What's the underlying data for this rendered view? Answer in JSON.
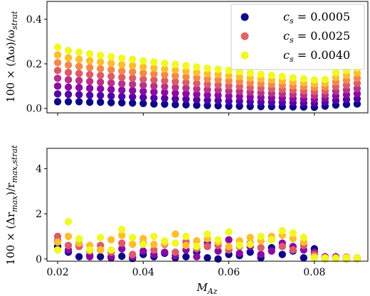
{
  "chart_data": [
    {
      "type": "scatter",
      "panel": "top",
      "ylabel": "100 × (Δω)/ω_strat",
      "ylabel_parts": {
        "prefix": "100 × (Δω)/ω",
        "sub": "strat"
      },
      "xlim": [
        0.0175,
        0.0925
      ],
      "ylim": [
        -0.02,
        0.48
      ],
      "yticks": [
        0.0,
        0.2,
        0.4
      ],
      "yticklabels": [
        "0.0",
        "0.2",
        "0.4"
      ],
      "grid": false,
      "legend": {
        "placement": "top-right",
        "entries": [
          {
            "prefix": "c",
            "sub": "s",
            "value": " = 0.0005",
            "color": "#0d0887"
          },
          {
            "prefix": "c",
            "sub": "s",
            "value": " = 0.0025",
            "color": "#e16462"
          },
          {
            "prefix": "c",
            "sub": "s",
            "value": " = 0.0040",
            "color": "#f0f921"
          }
        ]
      },
      "colormap": [
        "#0d0887",
        "#5302a3",
        "#8b0aa5",
        "#b83289",
        "#db5c68",
        "#f48849",
        "#febd2a",
        "#f0f921"
      ],
      "x": [
        0.02,
        0.0225,
        0.025,
        0.0275,
        0.03,
        0.0325,
        0.035,
        0.0375,
        0.04,
        0.0425,
        0.045,
        0.0475,
        0.05,
        0.0525,
        0.055,
        0.0575,
        0.06,
        0.0625,
        0.065,
        0.0675,
        0.07,
        0.0725,
        0.075,
        0.0775,
        0.08,
        0.0825,
        0.085,
        0.0875,
        0.09
      ],
      "min_cs_values": [
        0.03,
        0.03,
        0.03,
        0.028,
        0.028,
        0.026,
        0.025,
        0.024,
        0.022,
        0.02,
        0.019,
        0.017,
        0.016,
        0.014,
        0.013,
        0.012,
        0.01,
        0.01,
        0.009,
        0.008,
        0.008,
        0.008,
        0.007,
        0.006,
        0.005,
        0.01,
        0.015,
        0.018,
        0.02
      ],
      "max_cs_values": [
        0.275,
        0.26,
        0.252,
        0.245,
        0.238,
        0.232,
        0.225,
        0.22,
        0.213,
        0.208,
        0.203,
        0.198,
        0.192,
        0.186,
        0.18,
        0.176,
        0.17,
        0.165,
        0.158,
        0.153,
        0.148,
        0.143,
        0.138,
        0.133,
        0.128,
        0.13,
        0.16,
        0.17,
        0.182
      ],
      "n_levels": 8
    },
    {
      "type": "scatter",
      "panel": "bottom",
      "xlabel": "M_Az",
      "xlabel_parts": {
        "prefix": "M",
        "sub": "Az"
      },
      "ylabel": "100 × (Δr_max)/r_max,strat",
      "ylabel_parts": {
        "p1": "100 × (Δr",
        "sub1": "max",
        "p2": ")/r",
        "sub2": "max,strat"
      },
      "xlim": [
        0.0175,
        0.0925
      ],
      "ylim": [
        -0.1,
        4.9
      ],
      "yticks": [
        0,
        2,
        4
      ],
      "yticklabels": [
        "0",
        "2",
        "4"
      ],
      "xticks": [
        0.02,
        0.04,
        0.06,
        0.08
      ],
      "xticklabels": [
        "0.02",
        "0.04",
        "0.06",
        "0.08"
      ],
      "grid": false,
      "x": [
        0.02,
        0.0225,
        0.025,
        0.0275,
        0.03,
        0.0325,
        0.035,
        0.0375,
        0.04,
        0.0425,
        0.045,
        0.0475,
        0.05,
        0.0525,
        0.055,
        0.0575,
        0.06,
        0.0625,
        0.065,
        0.0675,
        0.07,
        0.0725,
        0.075,
        0.0775,
        0.08,
        0.0825,
        0.085,
        0.0875,
        0.09
      ],
      "series_by_level": [
        [
          0.55,
          0.3,
          0.1,
          0.15,
          0.1,
          0.05,
          0.12,
          0.02,
          0.2,
          0.1,
          0.25,
          0.05,
          0.1,
          0.3,
          0.05,
          0.0,
          0.2,
          0.15,
          0.3,
          0.05,
          0.5,
          0.2,
          0.35,
          0.05,
          0.45,
          0.05,
          0.05,
          0.02,
          0.02
        ],
        [
          0.8,
          0.4,
          0.6,
          0.1,
          0.4,
          0.1,
          0.45,
          0.1,
          0.35,
          0.2,
          0.3,
          0.15,
          0.4,
          0.1,
          0.7,
          0.35,
          0.85,
          0.25,
          0.55,
          0.2,
          0.35,
          0.7,
          0.55,
          0.4,
          0.3,
          0.1,
          0.1,
          0.05,
          0.05
        ],
        [
          1.0,
          0.6,
          0.55,
          0.35,
          0.6,
          0.3,
          0.7,
          0.2,
          0.7,
          0.4,
          0.65,
          0.3,
          0.75,
          0.45,
          0.55,
          0.6,
          0.4,
          0.55,
          0.7,
          0.5,
          0.85,
          0.55,
          0.4,
          0.6,
          0.2,
          0.05,
          0.02,
          0.08,
          0.05
        ],
        [
          0.75,
          1.0,
          0.7,
          0.6,
          0.4,
          0.85,
          1.05,
          0.65,
          0.9,
          0.65,
          0.7,
          1.1,
          0.6,
          0.8,
          0.9,
          0.75,
          0.55,
          0.8,
          0.95,
          0.8,
          1.0,
          1.05,
          0.9,
          0.75,
          0.1,
          0.0,
          0.05,
          0.0,
          0.02
        ],
        [
          0.4,
          1.65,
          0.9,
          0.4,
          0.95,
          0.4,
          1.3,
          0.95,
          0.65,
          1.0,
          0.8,
          0.7,
          1.0,
          0.55,
          1.1,
          0.85,
          1.2,
          0.6,
          0.65,
          1.0,
          0.85,
          1.25,
          1.15,
          0.95,
          0.05,
          0.05,
          0.02,
          0.05,
          0.05
        ]
      ],
      "level_colors": [
        "#0d0887",
        "#8b0aa5",
        "#db5c68",
        "#febd2a",
        "#f0f921"
      ]
    }
  ]
}
